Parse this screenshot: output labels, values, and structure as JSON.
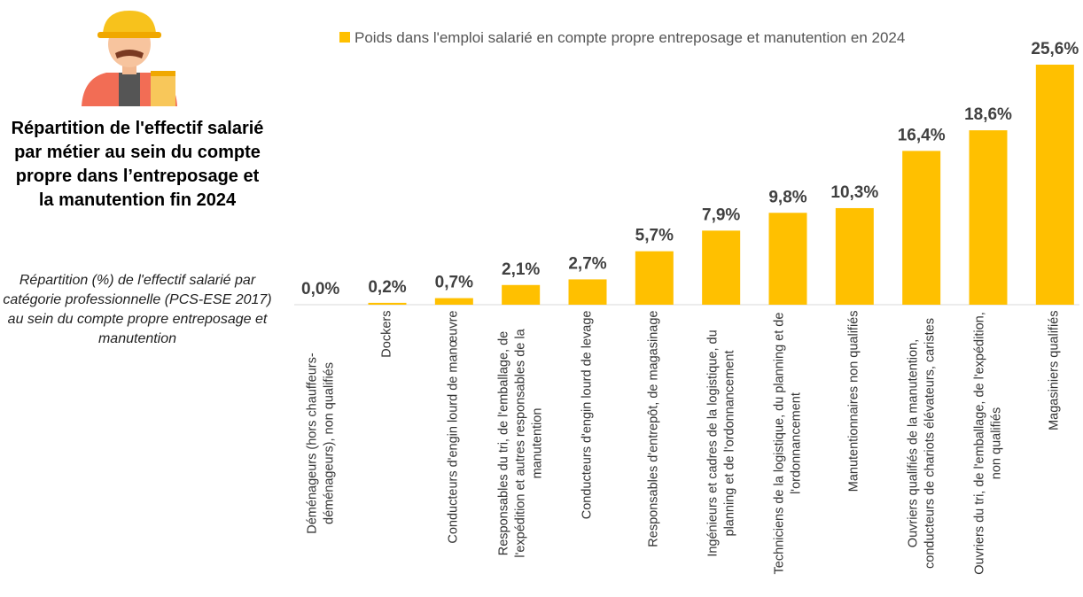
{
  "title": "Répartition de l'effectif salarié par métier au sein du compte propre dans l’entreposage et la manutention fin 2024",
  "subtitle": "Répartition (%) de l'effectif salarié par catégorie professionnelle (PCS-ESE 2017) au sein du compte propre entreposage et manutention",
  "chart_data": {
    "type": "bar",
    "categories": [
      "Déménageurs (hors chauffeurs-déménageurs), non qualifiés",
      "Dockers",
      "Conducteurs d'engin lourd de manœuvre",
      "Responsables du tri, de l'emballage, de l'expédition et autres responsables de la manutention",
      "Conducteurs d'engin lourd de levage",
      "Responsables d'entrepôt, de magasinage",
      "Ingénieurs et cadres de la logistique, du planning et de l'ordonnancement",
      "Techniciens de la logistique, du planning et de l'ordonnancement",
      "Manutentionnaires non qualifiés",
      "Ouvriers qualifiés de la manutention, conducteurs de chariots élévateurs, caristes",
      "Ouvriers du tri, de l'emballage, de l'expédition, non qualifiés",
      "Magasiniers qualifiés"
    ],
    "series": [
      {
        "name": "Poids dans l'emploi salarié en compte propre entreposage et manutention en 2024",
        "color": "#FFC000",
        "values": [
          0.0,
          0.2,
          0.7,
          2.1,
          2.7,
          5.7,
          7.9,
          9.8,
          10.3,
          16.4,
          18.6,
          25.6
        ],
        "value_labels": [
          "0,0%",
          "0,2%",
          "0,7%",
          "2,1%",
          "2,7%",
          "5,7%",
          "7,9%",
          "9,8%",
          "10,3%",
          "16,4%",
          "18,6%",
          "25,6%"
        ]
      }
    ]
  }
}
